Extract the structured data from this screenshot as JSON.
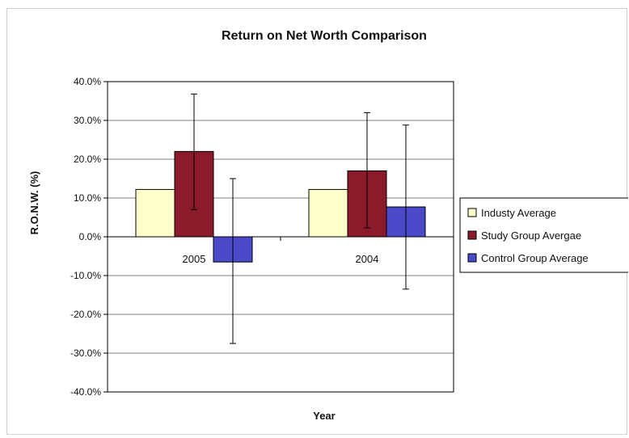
{
  "chart_data": {
    "type": "bar",
    "title": "Return on Net Worth Comparison",
    "xlabel": "Year",
    "ylabel": "R.O.N.W. (%)",
    "categories": [
      "2005",
      "2004"
    ],
    "ylim": [
      -40,
      40
    ],
    "yticks": [
      "40.0%",
      "30.0%",
      "20.0%",
      "10.0%",
      "0.0%",
      "-10.0%",
      "-20.0%",
      "-30.0%",
      "-40.0%"
    ],
    "grid": true,
    "legend_position": "right",
    "series": [
      {
        "name": "Industy Average",
        "color": "#ffffcc",
        "values": [
          12.2,
          12.2
        ],
        "error_low": [
          12.2,
          12.2
        ],
        "error_high": [
          12.2,
          12.2
        ]
      },
      {
        "name": "Study Group Avergae",
        "color": "#8b1a2b",
        "values": [
          22.0,
          17.0
        ],
        "error_low": [
          7.0,
          2.3
        ],
        "error_high": [
          36.8,
          32.0
        ]
      },
      {
        "name": "Control Group Average",
        "color": "#4a4ac8",
        "values": [
          -6.5,
          7.7
        ],
        "error_low": [
          -27.5,
          -13.5
        ],
        "error_high": [
          15.0,
          28.8
        ]
      }
    ]
  }
}
